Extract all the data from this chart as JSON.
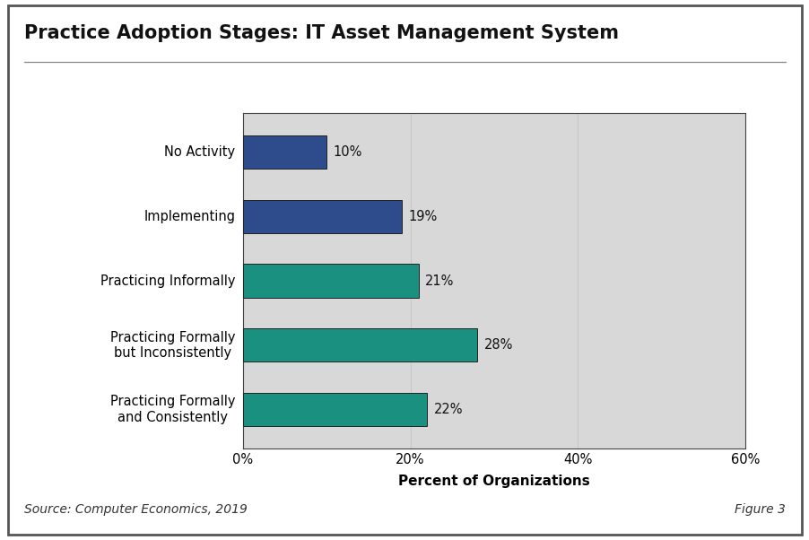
{
  "title": "Practice Adoption Stages: IT Asset Management System",
  "categories": [
    "No Activity",
    "Implementing",
    "Practicing Informally",
    "Practicing Formally\nbut Inconsistently",
    "Practicing Formally\nand Consistently"
  ],
  "values": [
    10,
    19,
    21,
    28,
    22
  ],
  "bar_colors": [
    "#2e4b8b",
    "#2e4b8b",
    "#1a9180",
    "#1a9180",
    "#1a9180"
  ],
  "xlabel": "Percent of Organizations",
  "xlim": [
    0,
    60
  ],
  "xticks": [
    0,
    20,
    40,
    60
  ],
  "xticklabels": [
    "0%",
    "20%",
    "40%",
    "60%"
  ],
  "grid_color": "#c8c8c8",
  "plot_bg_color": "#d8d8d8",
  "outer_bg_color": "#ffffff",
  "border_color": "#444444",
  "source_text": "Source: Computer Economics, 2019",
  "figure_text": "Figure 3",
  "title_fontsize": 15,
  "label_fontsize": 10.5,
  "tick_fontsize": 10.5,
  "xlabel_fontsize": 11,
  "source_fontsize": 10,
  "bar_value_fontsize": 10.5,
  "bar_height": 0.52
}
